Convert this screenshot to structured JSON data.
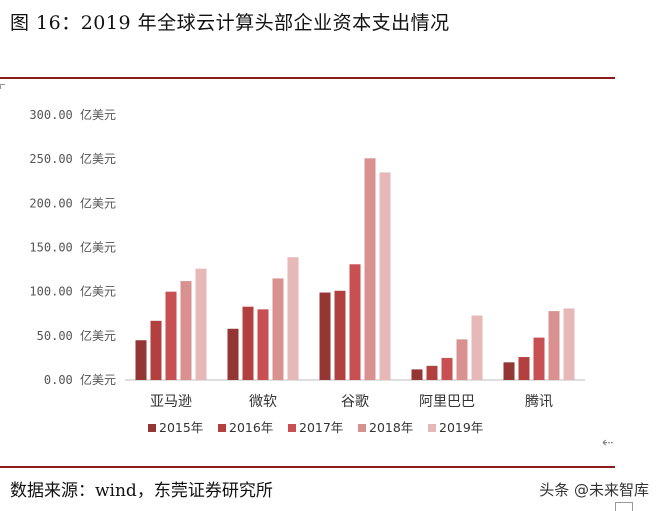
{
  "figure": {
    "title": "图 16：2019 年全球云计算头部企业资本支出情况",
    "source": "数据来源：wind，东莞证券研究所",
    "watermark": "头条 @未来智库"
  },
  "colors": {
    "rule": "#8b1c1c",
    "axis": "#bfbfbf"
  },
  "chart_data": {
    "type": "bar",
    "categories": [
      "亚马逊",
      "微软",
      "谷歌",
      "阿里巴巴",
      "腾讯"
    ],
    "series": [
      {
        "name": "2015年",
        "color": "#943634",
        "values": [
          45,
          58,
          99,
          12,
          20
        ]
      },
      {
        "name": "2016年",
        "color": "#b2403f",
        "values": [
          67,
          83,
          101,
          16,
          26
        ]
      },
      {
        "name": "2017年",
        "color": "#c84f52",
        "values": [
          100,
          80,
          131,
          25,
          48
        ]
      },
      {
        "name": "2018年",
        "color": "#d9918f",
        "values": [
          112,
          115,
          251,
          46,
          78
        ]
      },
      {
        "name": "2019年",
        "color": "#e6b8b7",
        "values": [
          126,
          139,
          235,
          73,
          81
        ]
      }
    ],
    "ylim": [
      0,
      300
    ],
    "yticks": [
      0,
      50,
      100,
      150,
      200,
      250,
      300
    ],
    "ytick_labels": [
      "0.00 亿美元",
      "50.00 亿美元",
      "100.00 亿美元",
      "150.00 亿美元",
      "200.00 亿美元",
      "250.00 亿美元",
      "300.00 亿美元"
    ],
    "legend_position": "bottom",
    "grid": false
  }
}
